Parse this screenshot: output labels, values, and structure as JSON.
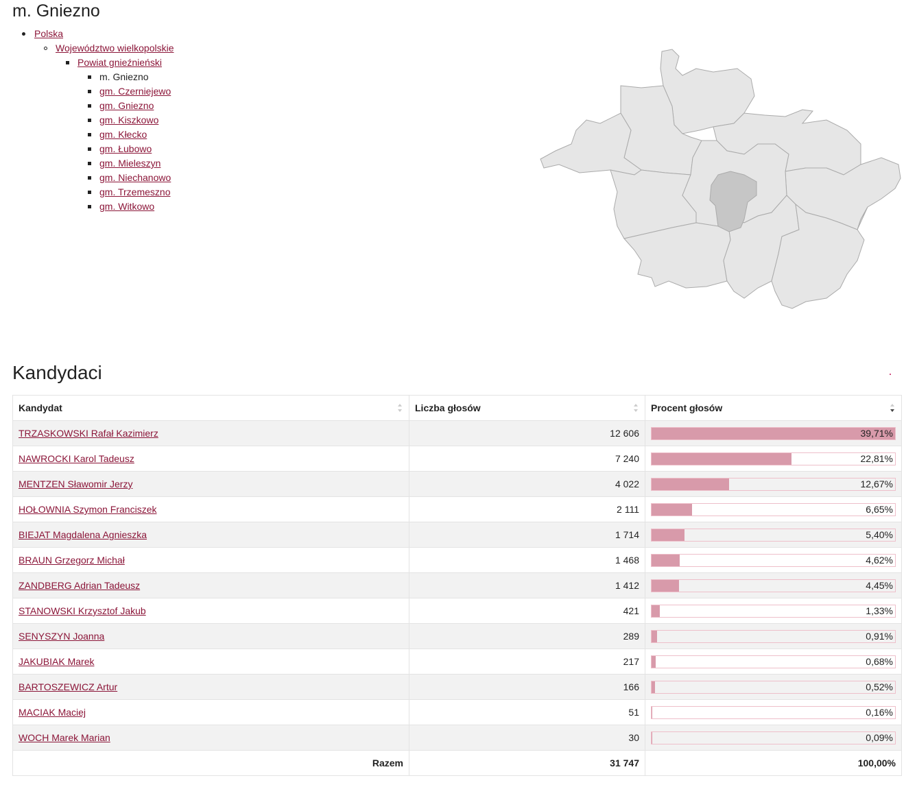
{
  "page": {
    "title": "m. Gniezno"
  },
  "breadcrumb": {
    "country": "Polska",
    "voivodeship": "Województwo wielkopolskie",
    "county": "Powiat gnieźnieński",
    "current": "m. Gniezno",
    "siblings": [
      "gm. Czerniejewo",
      "gm. Gniezno",
      "gm. Kiszkowo",
      "gm. Kłecko",
      "gm. Łubowo",
      "gm. Mieleszyn",
      "gm. Niechanowo",
      "gm. Trzemeszno",
      "gm. Witkowo"
    ]
  },
  "map": {
    "fill_color": "#e6e6e6",
    "highlight_color": "#c6c6c6",
    "stroke_color": "#aaaaaa"
  },
  "candidates": {
    "title": "Kandydaci",
    "columns": [
      "Kandydat",
      "Liczba głosów",
      "Procent głosów"
    ],
    "bar_color": "#d89aaa",
    "link_color": "#8b1538",
    "rows": [
      {
        "name": "TRZASKOWSKI Rafał Kazimierz",
        "votes": "12 606",
        "percent": "39,71%",
        "share": 39.71
      },
      {
        "name": "NAWROCKI Karol Tadeusz",
        "votes": "7 240",
        "percent": "22,81%",
        "share": 22.81
      },
      {
        "name": "MENTZEN Sławomir Jerzy",
        "votes": "4 022",
        "percent": "12,67%",
        "share": 12.67
      },
      {
        "name": "HOŁOWNIA Szymon Franciszek",
        "votes": "2 111",
        "percent": "6,65%",
        "share": 6.65
      },
      {
        "name": "BIEJAT Magdalena Agnieszka",
        "votes": "1 714",
        "percent": "5,40%",
        "share": 5.4
      },
      {
        "name": "BRAUN Grzegorz Michał",
        "votes": "1 468",
        "percent": "4,62%",
        "share": 4.62
      },
      {
        "name": "ZANDBERG Adrian Tadeusz",
        "votes": "1 412",
        "percent": "4,45%",
        "share": 4.45
      },
      {
        "name": "STANOWSKI Krzysztof Jakub",
        "votes": "421",
        "percent": "1,33%",
        "share": 1.33
      },
      {
        "name": "SENYSZYN Joanna",
        "votes": "289",
        "percent": "0,91%",
        "share": 0.91
      },
      {
        "name": "JAKUBIAK Marek",
        "votes": "217",
        "percent": "0,68%",
        "share": 0.68
      },
      {
        "name": "BARTOSZEWICZ Artur",
        "votes": "166",
        "percent": "0,52%",
        "share": 0.52
      },
      {
        "name": "MACIAK Maciej",
        "votes": "51",
        "percent": "0,16%",
        "share": 0.16
      },
      {
        "name": "WOCH Marek Marian",
        "votes": "30",
        "percent": "0,09%",
        "share": 0.09
      }
    ],
    "total": {
      "label": "Razem",
      "votes": "31 747",
      "percent": "100,00%"
    }
  }
}
